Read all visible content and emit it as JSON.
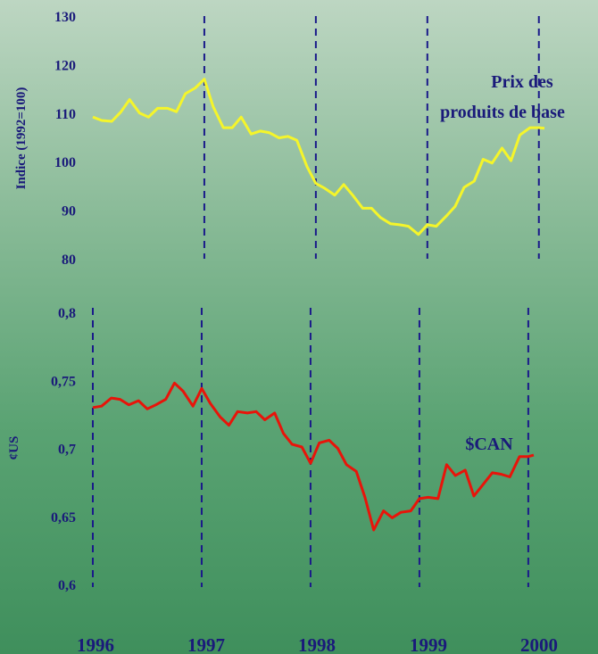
{
  "chart_data": [
    {
      "type": "line",
      "ylabel": "Indice (1992=100)",
      "ylim": [
        80,
        130
      ],
      "yticks": [
        "130",
        "120",
        "110",
        "100",
        "90",
        "80"
      ],
      "annotation": [
        "Prix des",
        "produits de base"
      ],
      "year_markers": [
        1997,
        1998,
        1999,
        2000
      ],
      "xlim": [
        1996.0,
        2000.05
      ],
      "grid": false,
      "series": [
        {
          "color": "#f5f52a",
          "x": [
            1996.0,
            1996.08,
            1996.17,
            1996.25,
            1996.33,
            1996.42,
            1996.5,
            1996.58,
            1996.67,
            1996.75,
            1996.83,
            1996.92,
            1997.0,
            1997.08,
            1997.17,
            1997.25,
            1997.33,
            1997.42,
            1997.5,
            1997.58,
            1997.67,
            1997.75,
            1997.83,
            1997.92,
            1998.0,
            1998.08,
            1998.17,
            1998.25,
            1998.33,
            1998.42,
            1998.5,
            1998.58,
            1998.67,
            1998.75,
            1998.83,
            1998.92,
            1999.0,
            1999.08,
            1999.17,
            1999.25,
            1999.33,
            1999.42,
            1999.5,
            1999.58,
            1999.67,
            1999.75,
            1999.83,
            1999.92,
            2000.0,
            2000.05
          ],
          "y": [
            109.2,
            108.5,
            108.3,
            110.2,
            112.8,
            110.0,
            109.2,
            111.0,
            111.0,
            110.3,
            114.0,
            115.2,
            117.0,
            111.3,
            107.0,
            107.0,
            109.2,
            105.7,
            106.3,
            106.0,
            104.9,
            105.2,
            104.4,
            99.0,
            95.5,
            94.5,
            93.1,
            95.3,
            93.1,
            90.4,
            90.4,
            88.5,
            87.2,
            87.0,
            86.7,
            85.0,
            87.0,
            86.7,
            88.8,
            90.8,
            94.7,
            96.0,
            100.5,
            99.7,
            102.8,
            100.2,
            105.5,
            107.0,
            107.0,
            106.9
          ]
        }
      ]
    },
    {
      "type": "line",
      "ylabel": "¢US",
      "ylim": [
        0.6,
        0.8
      ],
      "yticks": [
        "0,8",
        "0,75",
        "0,7",
        "0,65",
        "0,6"
      ],
      "annotation": [
        "$CAN"
      ],
      "year_markers": [
        1996,
        1997,
        1998,
        1999,
        2000
      ],
      "xlim": [
        1996.0,
        2000.05
      ],
      "grid": false,
      "series": [
        {
          "color": "#e8140a",
          "x": [
            1996.0,
            1996.08,
            1996.17,
            1996.25,
            1996.33,
            1996.42,
            1996.5,
            1996.58,
            1996.67,
            1996.75,
            1996.83,
            1996.92,
            1997.0,
            1997.08,
            1997.17,
            1997.25,
            1997.33,
            1997.42,
            1997.5,
            1997.58,
            1997.67,
            1997.75,
            1997.83,
            1997.92,
            1998.0,
            1998.08,
            1998.17,
            1998.25,
            1998.33,
            1998.42,
            1998.5,
            1998.58,
            1998.67,
            1998.75,
            1998.83,
            1998.92,
            1999.0,
            1999.08,
            1999.17,
            1999.25,
            1999.33,
            1999.42,
            1999.5,
            1999.58,
            1999.67,
            1999.75,
            1999.83,
            1999.92,
            2000.0,
            2000.05
          ],
          "y": [
            0.73,
            0.731,
            0.737,
            0.736,
            0.732,
            0.735,
            0.729,
            0.732,
            0.736,
            0.748,
            0.742,
            0.731,
            0.744,
            0.733,
            0.723,
            0.717,
            0.727,
            0.726,
            0.727,
            0.721,
            0.726,
            0.711,
            0.703,
            0.701,
            0.689,
            0.704,
            0.706,
            0.7,
            0.688,
            0.683,
            0.664,
            0.64,
            0.654,
            0.649,
            0.653,
            0.654,
            0.663,
            0.664,
            0.663,
            0.688,
            0.68,
            0.684,
            0.665,
            0.673,
            0.682,
            0.681,
            0.679,
            0.694,
            0.694,
            0.695
          ]
        }
      ]
    }
  ],
  "x_axis": {
    "labels": [
      "1996",
      "1997",
      "1998",
      "1999",
      "2000"
    ]
  }
}
